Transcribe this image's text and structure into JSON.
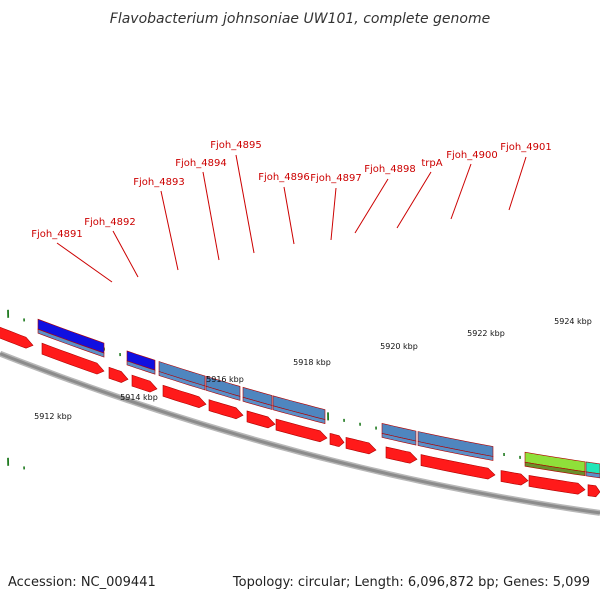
{
  "title": "Flavobacterium johnsoniae UW101, complete genome",
  "footer": {
    "accession": "Accession: NC_009441",
    "summary": "Topology: circular; Length: 6,096,872 bp; Genes: 5,099"
  },
  "colors": {
    "cds": "#ff1a1a",
    "backbone": "#8c8c8c",
    "feature_blue": "#4f86bf",
    "feature_navy": "#1010e0",
    "feature_green": "#8fe03a",
    "feature_teal": "#22e6b8",
    "tick": "#1f7a1f",
    "label": "#cc0000"
  },
  "locus_tags": [
    "Fjoh_4891",
    "Fjoh_4892",
    "Fjoh_4893",
    "Fjoh_4894",
    "Fjoh_4895",
    "Fjoh_4896",
    "Fjoh_4897",
    "Fjoh_4898",
    "trpA",
    "Fjoh_4900",
    "Fjoh_4901"
  ],
  "position_labels": [
    "5912 kbp",
    "5914 kbp",
    "5916 kbp",
    "5918 kbp",
    "5920 kbp",
    "5922 kbp",
    "5924 kbp"
  ]
}
